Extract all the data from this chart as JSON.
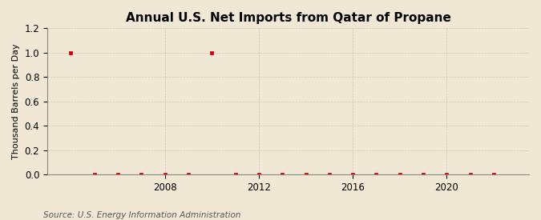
{
  "title": "Annual U.S. Net Imports from Qatar of Propane",
  "ylabel": "Thousand Barrels per Day",
  "source": "Source: U.S. Energy Information Administration",
  "background_color": "#f0e8d5",
  "plot_bg_color": "#f0e8d5",
  "marker_color": "#cc0000",
  "grid_color": "#aaaaaa",
  "years": [
    2004,
    2005,
    2006,
    2007,
    2008,
    2009,
    2010,
    2011,
    2012,
    2013,
    2014,
    2015,
    2016,
    2017,
    2018,
    2019,
    2020,
    2021,
    2022
  ],
  "values": [
    1.0,
    0.0,
    0.0,
    0.0,
    0.0,
    0.0,
    1.0,
    0.0,
    0.0,
    0.0,
    0.0,
    0.0,
    0.0,
    0.0,
    0.0,
    0.0,
    0.0,
    0.0,
    0.0
  ],
  "xlim": [
    2003.0,
    2023.5
  ],
  "ylim": [
    0.0,
    1.2
  ],
  "yticks": [
    0.0,
    0.2,
    0.4,
    0.6,
    0.8,
    1.0,
    1.2
  ],
  "xticks": [
    2008,
    2012,
    2016,
    2020
  ],
  "title_fontsize": 11,
  "label_fontsize": 8,
  "tick_fontsize": 8.5,
  "source_fontsize": 7.5
}
